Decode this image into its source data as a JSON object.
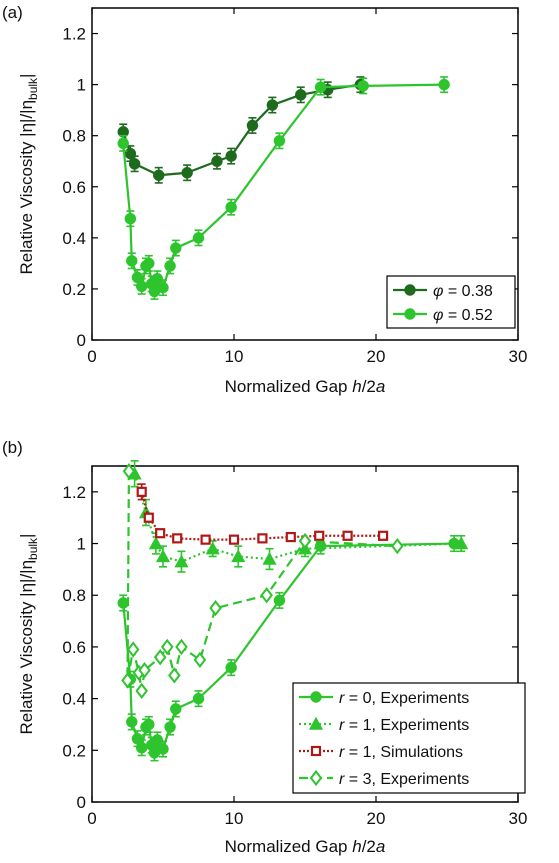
{
  "colors": {
    "dark_green": "#1e6b1e",
    "light_green": "#2ec42e",
    "sim_red": "#b01818",
    "axis": "#000000"
  },
  "chart_data": [
    {
      "panel_label": "(a)",
      "type": "line",
      "xlabel_main": "Normalized Gap ",
      "xlabel_var": "h",
      "xlabel_rest": "/2",
      "xlabel_var2": "a",
      "ylabel": "Relative Viscosity |η|/|η",
      "ylabel_sub": "bulk",
      "ylabel_end": "|",
      "xlim": [
        0,
        30
      ],
      "ylim": [
        0,
        1.3
      ],
      "xticks": [
        0,
        10,
        20,
        30
      ],
      "yticks": [
        0,
        0.2,
        0.4,
        0.6,
        0.8,
        1,
        1.2
      ],
      "ytick_labels": [
        "0",
        "0.2",
        "0.4",
        "0.6",
        "0.8",
        "1",
        "1.2"
      ],
      "legend_position": "bottom-right",
      "series": [
        {
          "name_sym": "φ",
          "name_rest": " = 0.38",
          "color": "#1e6b1e",
          "marker": "circle",
          "dash": "",
          "points": [
            [
              2.2,
              0.815
            ],
            [
              2.7,
              0.73
            ],
            [
              3.0,
              0.69
            ],
            [
              4.7,
              0.645
            ],
            [
              6.7,
              0.655
            ],
            [
              8.8,
              0.7
            ],
            [
              9.8,
              0.72
            ],
            [
              11.3,
              0.84
            ],
            [
              12.7,
              0.92
            ],
            [
              14.7,
              0.96
            ],
            [
              16.6,
              0.98
            ],
            [
              18.9,
              1.0
            ]
          ],
          "errors": [
            0.03,
            0.03,
            0.03,
            0.03,
            0.03,
            0.03,
            0.03,
            0.03,
            0.03,
            0.03,
            0.03,
            0.03
          ]
        },
        {
          "name_sym": "φ",
          "name_rest": " = 0.52",
          "color": "#2ec42e",
          "marker": "circle",
          "dash": "",
          "points": [
            [
              2.2,
              0.77
            ],
            [
              2.7,
              0.475
            ],
            [
              2.8,
              0.31
            ],
            [
              3.2,
              0.245
            ],
            [
              3.5,
              0.21
            ],
            [
              3.8,
              0.29
            ],
            [
              4.0,
              0.3
            ],
            [
              4.2,
              0.22
            ],
            [
              4.4,
              0.19
            ],
            [
              4.6,
              0.24
            ],
            [
              5.0,
              0.205
            ],
            [
              5.5,
              0.29
            ],
            [
              5.9,
              0.36
            ],
            [
              7.5,
              0.4
            ],
            [
              9.8,
              0.52
            ],
            [
              13.2,
              0.78
            ],
            [
              16.1,
              0.99
            ],
            [
              19.1,
              0.995
            ],
            [
              24.8,
              1.0
            ]
          ],
          "errors": [
            0.03,
            0.03,
            0.03,
            0.03,
            0.03,
            0.03,
            0.03,
            0.03,
            0.03,
            0.03,
            0.03,
            0.03,
            0.03,
            0.03,
            0.03,
            0.03,
            0.03,
            0.03,
            0.03
          ]
        }
      ]
    },
    {
      "panel_label": "(b)",
      "type": "line",
      "xlabel_main": "Normalized Gap ",
      "xlabel_var": "h",
      "xlabel_rest": "/2",
      "xlabel_var2": "a",
      "ylabel": "Relative Viscosity |η|/|η",
      "ylabel_sub": "bulk",
      "ylabel_end": "|",
      "xlim": [
        0,
        30
      ],
      "ylim": [
        0,
        1.3
      ],
      "xticks": [
        0,
        10,
        20,
        30
      ],
      "yticks": [
        0,
        0.2,
        0.4,
        0.6,
        0.8,
        1,
        1.2
      ],
      "ytick_labels": [
        "0",
        "0.2",
        "0.4",
        "0.6",
        "0.8",
        "1",
        "1.2"
      ],
      "legend_position": "bottom-right",
      "series": [
        {
          "name_sym": "r",
          "name_rest": " = 0, Experiments",
          "color": "#2ec42e",
          "marker": "circle",
          "dash": "",
          "points": [
            [
              2.2,
              0.77
            ],
            [
              2.7,
              0.475
            ],
            [
              2.8,
              0.31
            ],
            [
              3.2,
              0.245
            ],
            [
              3.5,
              0.21
            ],
            [
              3.8,
              0.29
            ],
            [
              4.0,
              0.3
            ],
            [
              4.2,
              0.22
            ],
            [
              4.4,
              0.19
            ],
            [
              4.6,
              0.24
            ],
            [
              5.0,
              0.205
            ],
            [
              5.5,
              0.29
            ],
            [
              5.9,
              0.36
            ],
            [
              7.5,
              0.4
            ],
            [
              9.8,
              0.52
            ],
            [
              13.2,
              0.78
            ],
            [
              16.1,
              0.99
            ],
            [
              25.5,
              1.0
            ]
          ],
          "errors": [
            0.03,
            0.03,
            0.03,
            0.03,
            0.03,
            0.03,
            0.03,
            0.03,
            0.03,
            0.03,
            0.03,
            0.03,
            0.03,
            0.03,
            0.03,
            0.03,
            0.03,
            0.03
          ]
        },
        {
          "name_sym": "r",
          "name_rest": " = 1, Experiments",
          "color": "#2ec42e",
          "marker": "triangle",
          "dash": "2,3",
          "points": [
            [
              3.0,
              1.27
            ],
            [
              3.8,
              1.12
            ],
            [
              4.5,
              1.0
            ],
            [
              5.0,
              0.95
            ],
            [
              6.3,
              0.93
            ],
            [
              8.5,
              0.98
            ],
            [
              10.3,
              0.95
            ],
            [
              12.5,
              0.94
            ],
            [
              15.0,
              0.98
            ],
            [
              26.0,
              1.0
            ]
          ],
          "errors": [
            0.05,
            0.05,
            0.04,
            0.04,
            0.04,
            0.03,
            0.04,
            0.04,
            0.03,
            0.03
          ]
        },
        {
          "name_sym": "r",
          "name_rest": " = 1, Simulations",
          "color": "#b01818",
          "marker": "square",
          "dash": "2,2",
          "points": [
            [
              3.5,
              1.2
            ],
            [
              4.0,
              1.1
            ],
            [
              4.8,
              1.04
            ],
            [
              6.0,
              1.02
            ],
            [
              8.0,
              1.015
            ],
            [
              10.0,
              1.015
            ],
            [
              12.0,
              1.02
            ],
            [
              14.0,
              1.025
            ],
            [
              16.0,
              1.03
            ],
            [
              18.0,
              1.03
            ],
            [
              20.5,
              1.03
            ]
          ],
          "errors": [
            0.03,
            0,
            0,
            0,
            0,
            0,
            0,
            0,
            0,
            0,
            0
          ]
        },
        {
          "name_sym": "r",
          "name_rest": " = 3, Experiments",
          "color": "#2ec42e",
          "marker": "diamond",
          "dash": "9,5",
          "points": [
            [
              2.6,
              1.28
            ],
            [
              2.5,
              0.47
            ],
            [
              2.9,
              0.59
            ],
            [
              3.3,
              0.5
            ],
            [
              3.5,
              0.43
            ],
            [
              3.7,
              0.51
            ],
            [
              4.8,
              0.56
            ],
            [
              5.3,
              0.6
            ],
            [
              5.8,
              0.49
            ],
            [
              6.3,
              0.6
            ],
            [
              7.6,
              0.55
            ],
            [
              8.7,
              0.75
            ],
            [
              12.3,
              0.8
            ],
            [
              15.0,
              1.01
            ],
            [
              21.5,
              0.99
            ]
          ],
          "errors": [
            0,
            0,
            0,
            0,
            0,
            0,
            0,
            0,
            0,
            0,
            0,
            0,
            0,
            0,
            0
          ]
        }
      ]
    }
  ]
}
